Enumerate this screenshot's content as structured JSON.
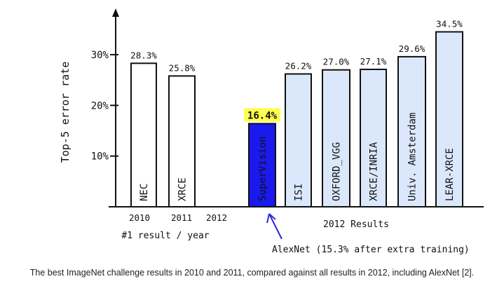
{
  "chart_data": {
    "type": "bar",
    "ylabel": "Top-5 error rate",
    "ylim": [
      0,
      40
    ],
    "yticks": [
      {
        "value": 10,
        "label": "10%"
      },
      {
        "value": 20,
        "label": "20%"
      },
      {
        "value": 30,
        "label": "30%"
      }
    ],
    "groups": [
      {
        "name": "#1 result / year",
        "year_ticks": [
          "2010",
          "2011",
          "2012"
        ],
        "bars": [
          {
            "category": "NEC",
            "value": 28.3,
            "value_label": "28.3%"
          },
          {
            "category": "XRCE",
            "value": 25.8,
            "value_label": "25.8%"
          }
        ]
      },
      {
        "name": "2012 Results",
        "bars": [
          {
            "category": "SuperVision",
            "value": 16.4,
            "value_label": "16.4%",
            "highlight": true
          },
          {
            "category": "ISI",
            "value": 26.2,
            "value_label": "26.2%"
          },
          {
            "category": "OXFORD_VGG",
            "value": 27.0,
            "value_label": "27.0%"
          },
          {
            "category": "XRCE/INRIA",
            "value": 27.1,
            "value_label": "27.1%"
          },
          {
            "category": "Univ. Amsterdam",
            "value": 29.6,
            "value_label": "29.6%"
          },
          {
            "category": "LEAR-XRCE",
            "value": 34.5,
            "value_label": "34.5%"
          }
        ]
      }
    ],
    "annotation": "AlexNet (15.3% after extra training)",
    "colors": {
      "year_bar_fill": "#ffffff",
      "result_bar_fill": "#dbe8fb",
      "highlight_bar_fill": "#1a1aee",
      "highlight_label_bg": "#ffff4d",
      "annotation_color": "#2a2ad8",
      "axis_color": "#111111"
    }
  },
  "caption": "The best ImageNet challenge results in 2010 and 2011, compared against all results in 2012, including AlexNet [2]."
}
